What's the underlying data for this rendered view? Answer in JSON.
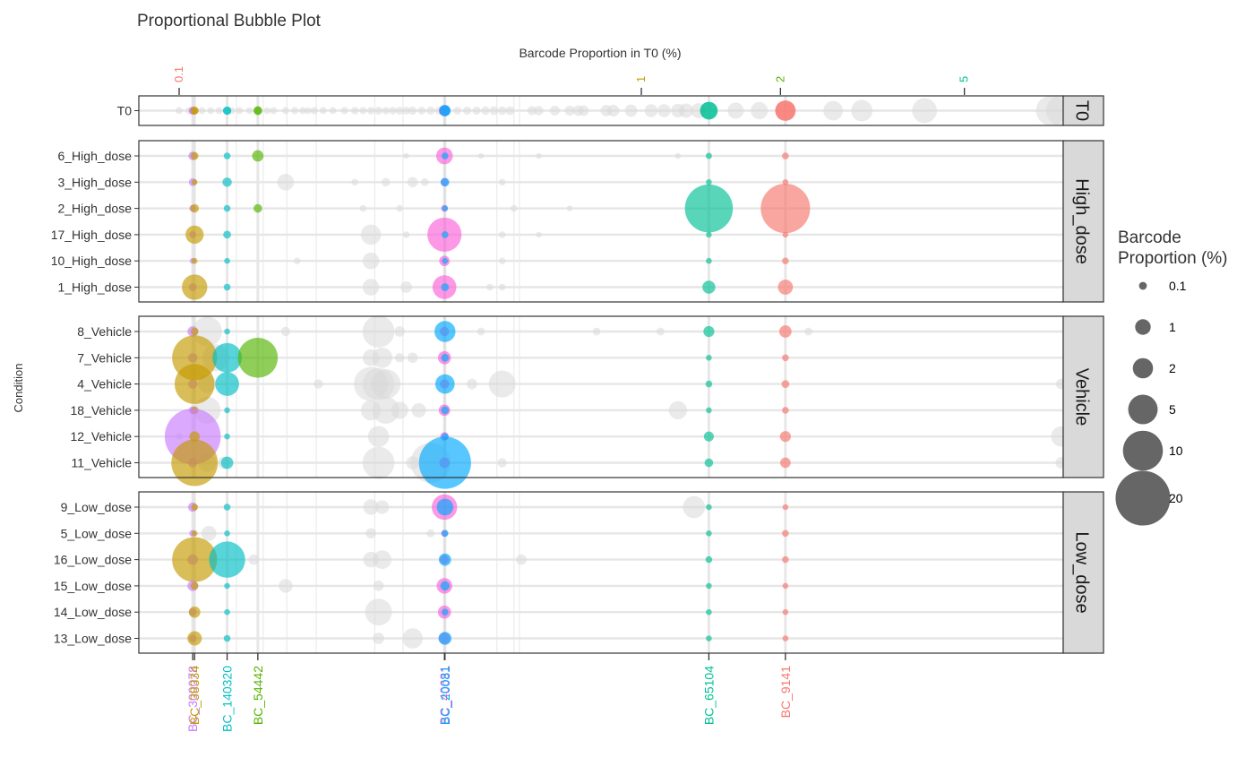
{
  "chart_data": {
    "type": "scatter",
    "title": "Proportional Bubble Plot",
    "x_axis_top_label": "Barcode Proportion in T0 (%)",
    "y_axis_label": "Condition",
    "legend_title": [
      "Barcode",
      "Proportion (%)"
    ],
    "legend_position": "right",
    "x_scale": "log",
    "grid": true,
    "top_ticks": [
      {
        "label": "0.1",
        "value": 0.1,
        "color": "#f8766d"
      },
      {
        "label": "1",
        "value": 1,
        "color": "#c49a00"
      },
      {
        "label": "2",
        "value": 2,
        "color": "#53b400"
      },
      {
        "label": "5",
        "value": 5,
        "color": "#00c094"
      }
    ],
    "size_legend": [
      {
        "label": "0.1",
        "value": 0.1
      },
      {
        "label": "1",
        "value": 1
      },
      {
        "label": "2",
        "value": 2
      },
      {
        "label": "5",
        "value": 5
      },
      {
        "label": "10",
        "value": 10
      },
      {
        "label": "20",
        "value": 20
      }
    ],
    "barcodes": [
      {
        "name": "BC_300078",
        "t0": 0.107,
        "color": "#c77cff"
      },
      {
        "name": "BC_38334",
        "t0": 0.108,
        "color": "#c49a00"
      },
      {
        "name": "BC_140320",
        "t0": 0.127,
        "color": "#00bfc4"
      },
      {
        "name": "BC_54442",
        "t0": 0.148,
        "color": "#53b400"
      },
      {
        "name": "BC_40631",
        "t0": 0.375,
        "color": "#fb61d7"
      },
      {
        "name": "BC_20081",
        "t0": 0.376,
        "color": "#00a9ff"
      },
      {
        "name": "BC_65104",
        "t0": 1.4,
        "color": "#00c094"
      },
      {
        "name": "BC_9141",
        "t0": 2.05,
        "color": "#f8766d"
      }
    ],
    "panels": [
      {
        "name": "T0",
        "rows": [
          "T0"
        ]
      },
      {
        "name": "High_dose",
        "rows": [
          "6_High_dose",
          "3_High_dose",
          "2_High_dose",
          "17_High_dose",
          "10_High_dose",
          "1_High_dose"
        ]
      },
      {
        "name": "Vehicle",
        "rows": [
          "8_Vehicle",
          "7_Vehicle",
          "4_Vehicle",
          "18_Vehicle",
          "12_Vehicle",
          "11_Vehicle"
        ]
      },
      {
        "name": "Low_dose",
        "rows": [
          "9_Low_dose",
          "5_Low_dose",
          "16_Low_dose",
          "15_Low_dose",
          "14_Low_dose",
          "13_Low_dose"
        ]
      }
    ],
    "series": [
      {
        "name": "BC_300078",
        "values": {
          "6_High_dose": 0.15,
          "3_High_dose": 0.1,
          "2_High_dose": 0.05,
          "17_High_dose": 0.05,
          "10_High_dose": 0.02,
          "1_High_dose": 0.1,
          "8_Vehicle": 0.3,
          "7_Vehicle": 0.2,
          "4_Vehicle": 0.2,
          "18_Vehicle": 0.1,
          "12_Vehicle": 21,
          "11_Vehicle": 0.2,
          "9_Low_dose": 0.2,
          "5_Low_dose": 0.05,
          "16_Low_dose": 0.3,
          "15_Low_dose": 0.3,
          "14_Low_dose": 0.1,
          "13_Low_dose": 0.1
        }
      },
      {
        "name": "BC_38334",
        "values": {
          "6_High_dose": 0.1,
          "3_High_dose": 0.02,
          "2_High_dose": 0.15,
          "17_High_dose": 1.5,
          "10_High_dose": 0.02,
          "1_High_dose": 3.5,
          "8_Vehicle": 0.1,
          "7_Vehicle": 13,
          "4_Vehicle": 10,
          "18_Vehicle": 0.1,
          "12_Vehicle": 0.3,
          "11_Vehicle": 14,
          "9_Low_dose": 0.05,
          "5_Low_dose": 0.02,
          "16_Low_dose": 13,
          "15_Low_dose": 0.1,
          "14_Low_dose": 0.4,
          "13_Low_dose": 0.8
        }
      },
      {
        "name": "BC_140320",
        "values": {
          "6_High_dose": 0.05,
          "3_High_dose": 0.2,
          "2_High_dose": 0.05,
          "17_High_dose": 0.1,
          "10_High_dose": 0.02,
          "1_High_dose": 0.05,
          "8_Vehicle": 0.02,
          "7_Vehicle": 5,
          "4_Vehicle": 3,
          "18_Vehicle": 0.02,
          "12_Vehicle": 0.02,
          "11_Vehicle": 0.5,
          "9_Low_dose": 0.05,
          "5_Low_dose": 0.02,
          "16_Low_dose": 8,
          "15_Low_dose": 0.02,
          "14_Low_dose": 0.02,
          "13_Low_dose": 0.05
        }
      },
      {
        "name": "BC_54442",
        "values": {
          "6_High_dose": 0.4,
          "2_High_dose": 0.15,
          "7_Vehicle": 10
        }
      },
      {
        "name": "BC_40631",
        "values": {
          "6_High_dose": 1.2,
          "3_High_dose": 0.1,
          "2_High_dose": 0.05,
          "17_High_dose": 7,
          "10_High_dose": 0.3,
          "1_High_dose": 3,
          "8_Vehicle": 0.2,
          "7_Vehicle": 0.6,
          "4_Vehicle": 0.2,
          "18_Vehicle": 0.4,
          "12_Vehicle": 0.15,
          "11_Vehicle": 0.3,
          "9_Low_dose": 3.5,
          "5_Low_dose": 0.05,
          "16_Low_dose": 0.2,
          "15_Low_dose": 1,
          "14_Low_dose": 0.6,
          "13_Low_dose": 0.4
        }
      },
      {
        "name": "BC_20081",
        "values": {
          "6_High_dose": 0.05,
          "3_High_dose": 0.15,
          "2_High_dose": 0.02,
          "17_High_dose": 0.05,
          "10_High_dose": 0.02,
          "1_High_dose": 0.1,
          "8_Vehicle": 2.2,
          "7_Vehicle": 0.1,
          "4_Vehicle": 1.8,
          "18_Vehicle": 0.1,
          "12_Vehicle": 0.05,
          "11_Vehicle": 18,
          "9_Low_dose": 1.2,
          "5_Low_dose": 0.05,
          "16_Low_dose": 0.5,
          "15_Low_dose": 0.2,
          "14_Low_dose": 0.05,
          "13_Low_dose": 0.6
        }
      },
      {
        "name": "BC_65104",
        "values": {
          "6_High_dose": 0.03,
          "3_High_dose": 0.02,
          "2_High_dose": 15,
          "17_High_dose": 0.02,
          "10_High_dose": 0.02,
          "1_High_dose": 0.6,
          "8_Vehicle": 0.35,
          "7_Vehicle": 0.02,
          "4_Vehicle": 0.05,
          "18_Vehicle": 0.02,
          "12_Vehicle": 0.25,
          "11_Vehicle": 0.15,
          "9_Low_dose": 0.02,
          "5_Low_dose": 0.02,
          "16_Low_dose": 0.05,
          "15_Low_dose": 0.02,
          "14_Low_dose": 0.02,
          "13_Low_dose": 0.02
        }
      },
      {
        "name": "BC_9141",
        "values": {
          "6_High_dose": 0.05,
          "3_High_dose": 0.02,
          "2_High_dose": 16,
          "17_High_dose": 0.02,
          "10_High_dose": 0.05,
          "1_High_dose": 0.9,
          "8_Vehicle": 0.5,
          "7_Vehicle": 0.05,
          "4_Vehicle": 0.1,
          "18_Vehicle": 0.05,
          "12_Vehicle": 0.35,
          "11_Vehicle": 0.3,
          "9_Low_dose": 0.02,
          "5_Low_dose": 0.05,
          "16_Low_dose": 0.05,
          "15_Low_dose": 0.02,
          "14_Low_dose": 0.02,
          "13_Low_dose": 0.02
        }
      }
    ],
    "t0_values": [
      1.4,
      2.05,
      0.107,
      0.108,
      0.127,
      0.148,
      0.375,
      0.376
    ],
    "background_grey": {
      "T0": [
        [
          0.1,
          0.06
        ],
        [
          0.105,
          0.05
        ],
        [
          0.112,
          0.06
        ],
        [
          0.117,
          0.05
        ],
        [
          0.122,
          0.06
        ],
        [
          0.13,
          0.05
        ],
        [
          0.135,
          0.06
        ],
        [
          0.142,
          0.05
        ],
        [
          0.155,
          0.05
        ],
        [
          0.16,
          0.06
        ],
        [
          0.17,
          0.06
        ],
        [
          0.178,
          0.07
        ],
        [
          0.185,
          0.06
        ],
        [
          0.19,
          0.05
        ],
        [
          0.196,
          0.07
        ],
        [
          0.205,
          0.06
        ],
        [
          0.215,
          0.06
        ],
        [
          0.228,
          0.07
        ],
        [
          0.24,
          0.08
        ],
        [
          0.25,
          0.07
        ],
        [
          0.26,
          0.09
        ],
        [
          0.27,
          0.1
        ],
        [
          0.28,
          0.08
        ],
        [
          0.29,
          0.09
        ],
        [
          0.3,
          0.1
        ],
        [
          0.31,
          0.1
        ],
        [
          0.32,
          0.12
        ],
        [
          0.335,
          0.1
        ],
        [
          0.35,
          0.12
        ],
        [
          0.365,
          0.1
        ],
        [
          0.4,
          0.1
        ],
        [
          0.42,
          0.12
        ],
        [
          0.44,
          0.13
        ],
        [
          0.46,
          0.14
        ],
        [
          0.48,
          0.15
        ],
        [
          0.5,
          0.14
        ],
        [
          0.52,
          0.16
        ],
        [
          0.58,
          0.18
        ],
        [
          0.6,
          0.2
        ],
        [
          0.65,
          0.25
        ],
        [
          0.7,
          0.25
        ],
        [
          0.73,
          0.3
        ],
        [
          0.75,
          0.3
        ],
        [
          0.84,
          0.4
        ],
        [
          0.87,
          0.45
        ],
        [
          0.95,
          0.5
        ],
        [
          1.05,
          0.6
        ],
        [
          1.12,
          0.6
        ],
        [
          1.2,
          0.7
        ],
        [
          1.25,
          0.8
        ],
        [
          1.33,
          0.9
        ],
        [
          1.6,
          1.1
        ],
        [
          1.8,
          1.3
        ],
        [
          2.6,
          1.8
        ],
        [
          3,
          2.3
        ],
        [
          4.1,
          3.3
        ],
        [
          7.7,
          5.2
        ],
        [
          8.1,
          5.3
        ]
      ],
      "6_High_dose": [
        [
          0.31,
          0.02
        ],
        [
          0.45,
          0.02
        ],
        [
          0.6,
          0.02
        ],
        [
          1.2,
          0.02
        ]
      ],
      "3_High_dose": [
        [
          0.17,
          1.2
        ],
        [
          0.24,
          0.05
        ],
        [
          0.28,
          0.15
        ],
        [
          0.32,
          0.3
        ],
        [
          0.34,
          0.1
        ],
        [
          0.5,
          0.05
        ]
      ],
      "2_High_dose": [
        [
          0.25,
          0.05
        ],
        [
          0.3,
          0.05
        ],
        [
          0.53,
          0.05
        ],
        [
          0.7,
          0.02
        ]
      ],
      "17_High_dose": [
        [
          0.26,
          2
        ],
        [
          0.31,
          0.05
        ],
        [
          0.5,
          0.05
        ],
        [
          0.6,
          0.02
        ]
      ],
      "10_High_dose": [
        [
          0.26,
          1.2
        ],
        [
          0.18,
          0.05
        ],
        [
          0.5,
          0.05
        ]
      ],
      "1_High_dose": [
        [
          0.26,
          1.2
        ],
        [
          0.31,
          0.4
        ],
        [
          0.47,
          0.05
        ],
        [
          0.5,
          0.05
        ]
      ],
      "8_Vehicle": [
        [
          0.115,
          5
        ],
        [
          0.17,
          0.2
        ],
        [
          0.27,
          6
        ],
        [
          0.3,
          0.3
        ],
        [
          0.45,
          0.1
        ],
        [
          0.8,
          0.1
        ],
        [
          1.1,
          0.1
        ],
        [
          2.3,
          0.1
        ]
      ],
      "7_Vehicle": [
        [
          0.12,
          4
        ],
        [
          0.26,
          1.2
        ],
        [
          0.275,
          2
        ],
        [
          0.3,
          0.2
        ],
        [
          0.32,
          0.3
        ]
      ],
      "4_Vehicle": [
        [
          0.115,
          1.5
        ],
        [
          0.2,
          0.2
        ],
        [
          0.26,
          7
        ],
        [
          0.27,
          6
        ],
        [
          0.28,
          5
        ],
        [
          0.43,
          0.3
        ],
        [
          0.5,
          4
        ],
        [
          8.1,
          0.3
        ]
      ],
      "18_Vehicle": [
        [
          0.115,
          4
        ],
        [
          0.26,
          2
        ],
        [
          0.28,
          4
        ],
        [
          0.3,
          1.3
        ],
        [
          0.33,
          0.8
        ],
        [
          1.2,
          1.5
        ]
      ],
      "12_Vehicle": [
        [
          0.1,
          0.05
        ],
        [
          0.27,
          2.2
        ],
        [
          8.1,
          2
        ]
      ],
      "11_Vehicle": [
        [
          0.115,
          1.5
        ],
        [
          0.125,
          0.5
        ],
        [
          0.27,
          6
        ],
        [
          0.35,
          10
        ],
        [
          0.32,
          0.6
        ],
        [
          0.5,
          0.2
        ],
        [
          8.1,
          0.4
        ]
      ],
      "9_Low_dose": [
        [
          0.26,
          1
        ],
        [
          0.275,
          0.7
        ],
        [
          1.3,
          2.5
        ]
      ],
      "5_Low_dose": [
        [
          0.116,
          0.9
        ],
        [
          0.26,
          0.3
        ],
        [
          0.35,
          0.1
        ]
      ],
      "16_Low_dose": [
        [
          0.26,
          1
        ],
        [
          0.275,
          1.6
        ],
        [
          0.145,
          0.3
        ],
        [
          0.55,
          0.3
        ]
      ],
      "15_Low_dose": [
        [
          0.17,
          0.7
        ],
        [
          0.27,
          0.3
        ]
      ],
      "14_Low_dose": [
        [
          0.27,
          4
        ]
      ],
      "13_Low_dose": [
        [
          0.27,
          0.4
        ],
        [
          0.32,
          2
        ]
      ]
    },
    "vertical_gridlines": [
      0.133,
      0.152,
      0.171,
      0.198,
      0.265,
      0.305,
      0.487,
      0.53,
      0.545
    ]
  }
}
